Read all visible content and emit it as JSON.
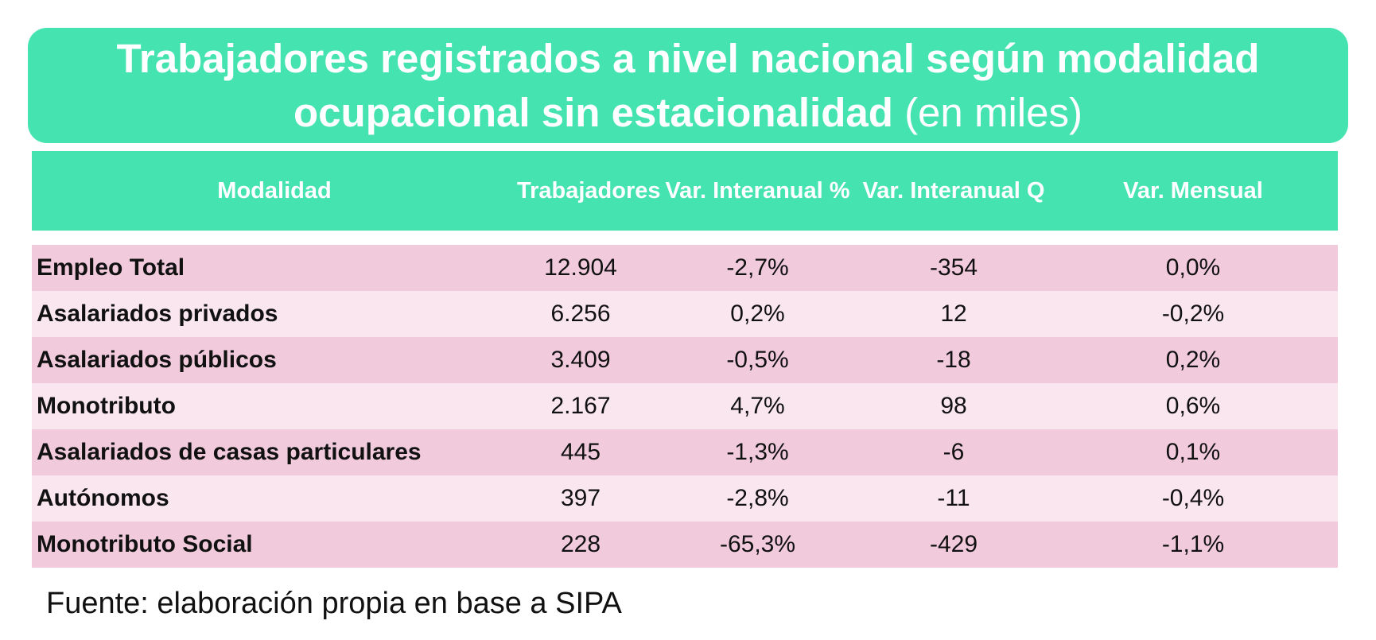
{
  "title": {
    "line1": "Trabajadores registrados a nivel nacional según modalidad",
    "line2_bold": "ocupacional sin estacionalidad",
    "line2_light": "(en miles)"
  },
  "table": {
    "headers": [
      "Modalidad",
      "Trabajadores",
      "Var. Interanual %",
      "Var. Interanual Q",
      "Var. Mensual"
    ],
    "rows": [
      [
        "Empleo Total",
        "12.904",
        "-2,7%",
        "-354",
        "0,0%"
      ],
      [
        "Asalariados privados",
        "6.256",
        "0,2%",
        "12",
        "-0,2%"
      ],
      [
        "Asalariados públicos",
        "3.409",
        "-0,5%",
        "-18",
        "0,2%"
      ],
      [
        "Monotributo",
        "2.167",
        "4,7%",
        "98",
        "0,6%"
      ],
      [
        "Asalariados de casas particulares",
        "445",
        "-1,3%",
        "-6",
        "0,1%"
      ],
      [
        "Autónomos",
        "397",
        "-2,8%",
        "-11",
        "-0,4%"
      ],
      [
        "Monotributo Social",
        "228",
        "-65,3%",
        "-429",
        "-1,1%"
      ]
    ]
  },
  "footer": "Fuente: elaboración propia en base a SIPA",
  "colors": {
    "accent": "#45e3b0",
    "row_dark": "#f1cbdc",
    "row_light": "#fae6ee"
  }
}
